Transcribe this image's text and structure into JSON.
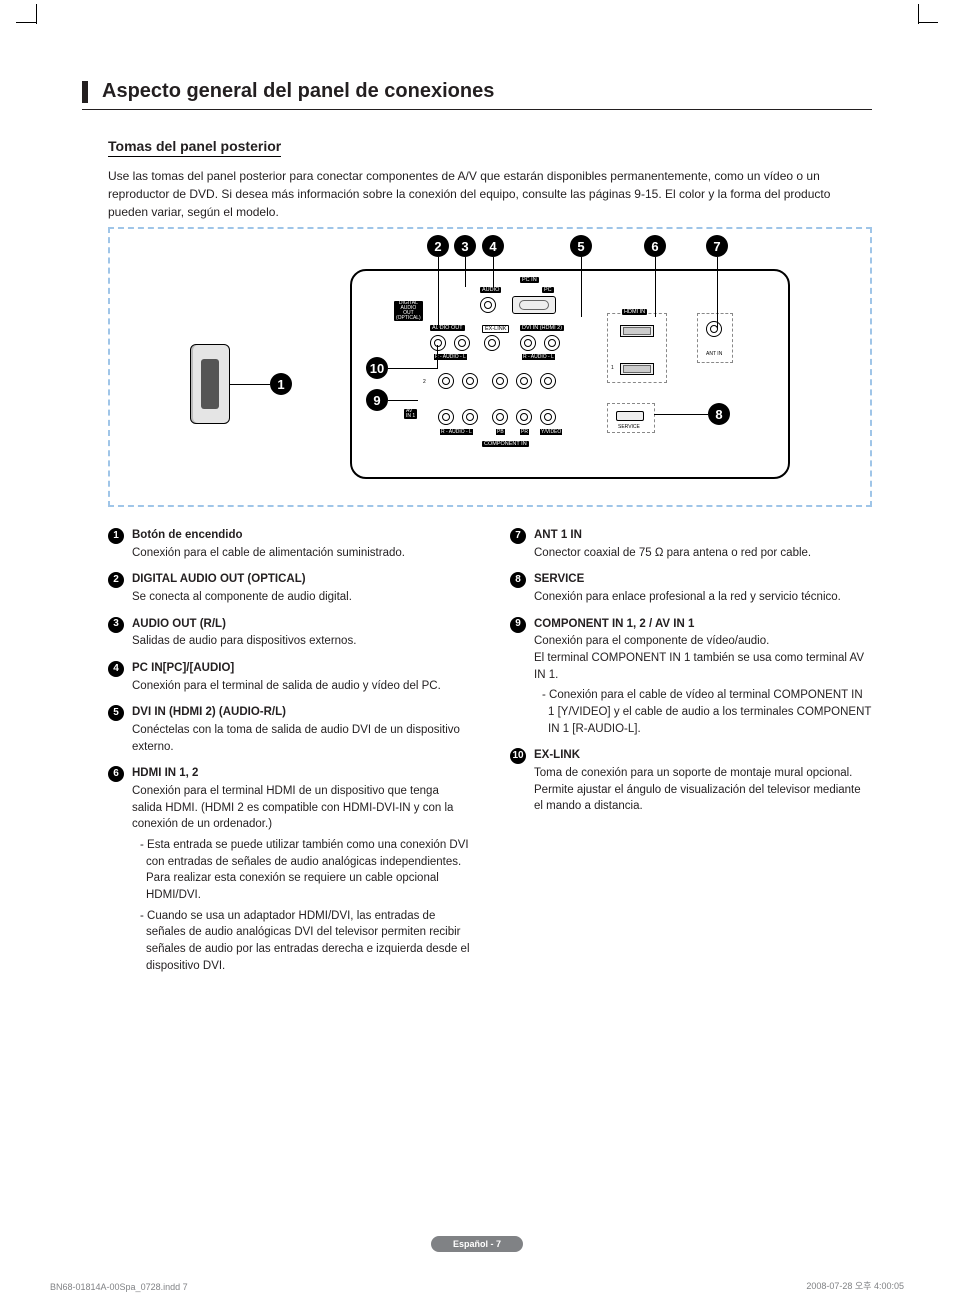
{
  "title": "Aspecto general del panel de conexiones",
  "subheading": "Tomas del panel posterior",
  "intro": "Use las tomas del panel posterior para conectar componentes de A/V que estarán disponibles permanentemente, como un vídeo o un reproductor de DVD. Si desea más información sobre la conexión del equipo, consulte las páginas 9-15. El color y la forma del producto pueden variar, según el modelo.",
  "diagram": {
    "callouts": [
      "1",
      "2",
      "3",
      "4",
      "5",
      "6",
      "7",
      "8",
      "9",
      "10"
    ],
    "labels": {
      "pc_in": "PC IN",
      "audio": "AUDIO",
      "pc": "PC",
      "digital_audio": "DIGITAL\nAUDIO\nOUT\n(OPTICAL)",
      "audio_out": "AUDIO OUT",
      "ex_link": "EX-LINK",
      "dvi_in": "DVI IN (HDMI 2)",
      "hdmi_in": "HDMI IN",
      "ant_in": "ANT IN",
      "service": "SERVICE",
      "av_in": "AV\nIN 1",
      "r_audio_l_1": "R - AUDIO - L",
      "pb": "PB",
      "pr": "PR",
      "y_video": "Y/VIDEO",
      "component_in": "COMPONENT IN",
      "row1": "1",
      "row2": "2"
    }
  },
  "left_items": [
    {
      "n": "1",
      "title": "Botón de encendido",
      "body": "Conexión para el cable de alimentación suministrado."
    },
    {
      "n": "2",
      "title": "DIGITAL AUDIO OUT (OPTICAL)",
      "body": "Se conecta al componente de audio digital."
    },
    {
      "n": "3",
      "title": "AUDIO OUT (R/L)",
      "body": "Salidas de audio para dispositivos externos."
    },
    {
      "n": "4",
      "title": "PC IN[PC]/[AUDIO]",
      "body": "Conexión para el terminal de salida de audio y vídeo del PC."
    },
    {
      "n": "5",
      "title": "DVI IN (HDMI 2) (AUDIO-R/L)",
      "body": "Conéctelas con la toma de salida de audio DVI de un dispositivo externo."
    },
    {
      "n": "6",
      "title": "HDMI IN 1, 2",
      "body": "Conexión para el terminal HDMI de un dispositivo que tenga salida HDMI. (HDMI 2 es compatible con HDMI-DVI-IN y con la conexión de un ordenador.)",
      "subs": [
        "- Esta entrada se puede utilizar también como una conexión DVI con entradas de señales de audio analógicas independientes. Para realizar esta conexión se requiere un cable opcional HDMI/DVI.",
        "- Cuando se usa un adaptador HDMI/DVI, las entradas de señales de audio analógicas DVI del televisor permiten recibir señales de audio por las entradas derecha e izquierda desde el dispositivo DVI."
      ]
    }
  ],
  "right_items": [
    {
      "n": "7",
      "title": "ANT 1 IN",
      "body": "Conector coaxial de 75 Ω para antena o red por cable."
    },
    {
      "n": "8",
      "title": "SERVICE",
      "body": "Conexión para enlace profesional a la red y servicio técnico."
    },
    {
      "n": "9",
      "title": "COMPONENT IN 1, 2 / AV IN 1",
      "body": "Conexión para el componente de vídeo/audio.\nEl terminal COMPONENT IN 1 también se usa como terminal AV IN 1.",
      "subs": [
        "- Conexión para el cable de vídeo al terminal COMPONENT IN 1 [Y/VIDEO] y el cable de audio a los terminales COMPONENT IN 1 [R-AUDIO-L]."
      ]
    },
    {
      "n": "10",
      "title": "EX-LINK",
      "body": "Toma de conexión para un soporte de montaje mural opcional. Permite ajustar el ángulo de visualización del televisor mediante el mando a distancia."
    }
  ],
  "footer": {
    "pill": "Español - 7",
    "left": "BN68-01814A-00Spa_0728.indd   7",
    "right": "2008-07-28   오후 4:00:05"
  }
}
